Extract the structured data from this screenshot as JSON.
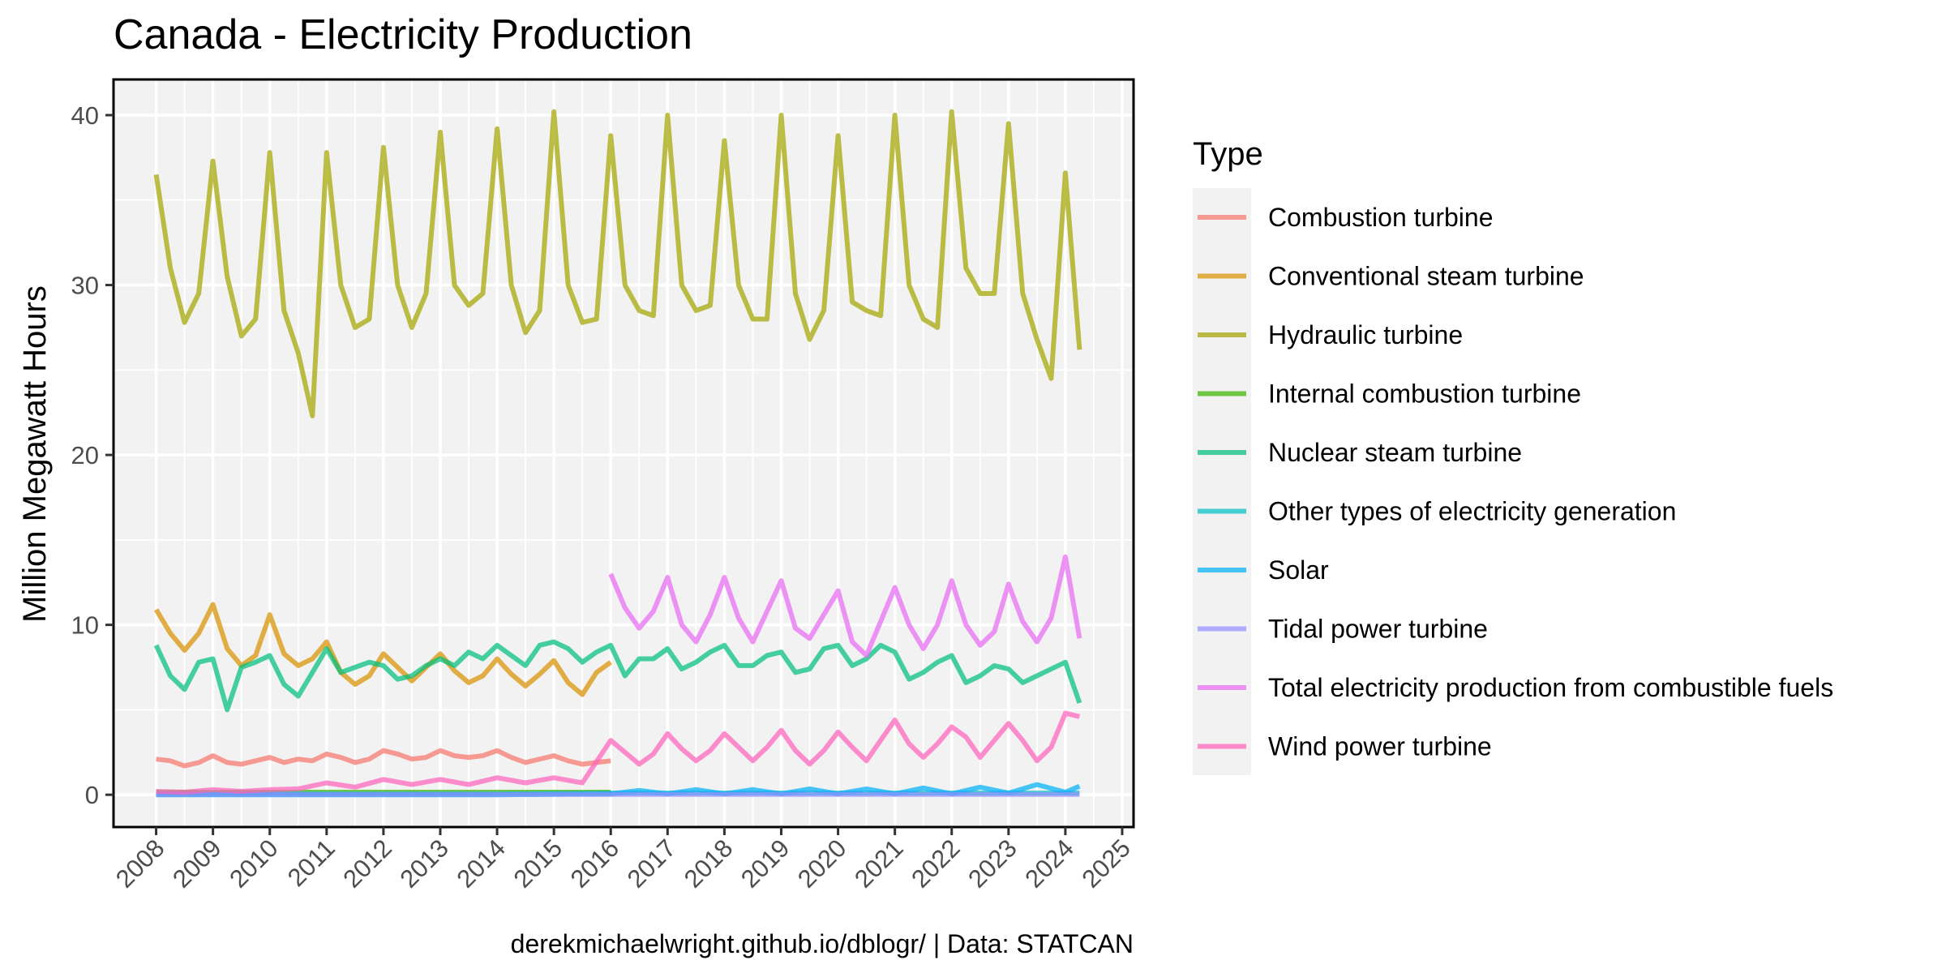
{
  "chart_data": {
    "type": "line",
    "title": "Canada - Electricity Production",
    "ylabel": "Million Megawatt Hours",
    "xlabel": "",
    "caption": "derekmichaelwright.github.io/dblogr/ | Data: STATCAN",
    "legend_title": "Type",
    "legend_position": "right",
    "grid": true,
    "xlim": [
      2007.25,
      2025.2
    ],
    "ylim": [
      -1.9,
      42.1
    ],
    "x_ticks": [
      "2008",
      "2009",
      "2010",
      "2011",
      "2012",
      "2013",
      "2014",
      "2015",
      "2016",
      "2017",
      "2018",
      "2019",
      "2020",
      "2021",
      "2022",
      "2023",
      "2024",
      "2025"
    ],
    "y_ticks": [
      "0",
      "10",
      "20",
      "30",
      "40"
    ],
    "series": [
      {
        "name": "Combustion turbine",
        "color": "#F8766D",
        "x": [
          2008,
          2008.25,
          2008.5,
          2008.75,
          2009,
          2009.25,
          2009.5,
          2009.75,
          2010,
          2010.25,
          2010.5,
          2010.75,
          2011,
          2011.25,
          2011.5,
          2011.75,
          2012,
          2012.25,
          2012.5,
          2012.75,
          2013,
          2013.25,
          2013.5,
          2013.75,
          2014,
          2014.25,
          2014.5,
          2014.75,
          2015,
          2015.25,
          2015.5,
          2015.75,
          2016
        ],
        "y": [
          2.1,
          2.0,
          1.7,
          1.9,
          2.3,
          1.9,
          1.8,
          2.0,
          2.2,
          1.9,
          2.1,
          2.0,
          2.4,
          2.2,
          1.9,
          2.1,
          2.6,
          2.4,
          2.1,
          2.2,
          2.6,
          2.3,
          2.2,
          2.3,
          2.6,
          2.2,
          1.9,
          2.1,
          2.3,
          2.0,
          1.8,
          1.9,
          2.0
        ]
      },
      {
        "name": "Conventional steam turbine",
        "color": "#D89000",
        "x": [
          2008,
          2008.25,
          2008.5,
          2008.75,
          2009,
          2009.25,
          2009.5,
          2009.75,
          2010,
          2010.25,
          2010.5,
          2010.75,
          2011,
          2011.25,
          2011.5,
          2011.75,
          2012,
          2012.25,
          2012.5,
          2012.75,
          2013,
          2013.25,
          2013.5,
          2013.75,
          2014,
          2014.25,
          2014.5,
          2014.75,
          2015,
          2015.25,
          2015.5,
          2015.75,
          2016
        ],
        "y": [
          10.9,
          9.5,
          8.5,
          9.5,
          11.2,
          8.6,
          7.6,
          8.2,
          10.6,
          8.3,
          7.6,
          8.0,
          9.0,
          7.2,
          6.5,
          7.0,
          8.3,
          7.5,
          6.7,
          7.5,
          8.3,
          7.3,
          6.6,
          7.0,
          8.0,
          7.1,
          6.4,
          7.1,
          7.9,
          6.6,
          5.9,
          7.2,
          7.8
        ]
      },
      {
        "name": "Hydraulic turbine",
        "color": "#A3A500",
        "x": [
          2008,
          2008.25,
          2008.5,
          2008.75,
          2009,
          2009.25,
          2009.5,
          2009.75,
          2010,
          2010.25,
          2010.5,
          2010.75,
          2011,
          2011.25,
          2011.5,
          2011.75,
          2012,
          2012.25,
          2012.5,
          2012.75,
          2013,
          2013.25,
          2013.5,
          2013.75,
          2014,
          2014.25,
          2014.5,
          2014.75,
          2015,
          2015.25,
          2015.5,
          2015.75,
          2016,
          2016.25,
          2016.5,
          2016.75,
          2017,
          2017.25,
          2017.5,
          2017.75,
          2018,
          2018.25,
          2018.5,
          2018.75,
          2019,
          2019.25,
          2019.5,
          2019.75,
          2020,
          2020.25,
          2020.5,
          2020.75,
          2021,
          2021.25,
          2021.5,
          2021.75,
          2022,
          2022.25,
          2022.5,
          2022.75,
          2023,
          2023.25,
          2023.5,
          2023.75,
          2024,
          2024.25
        ],
        "y": [
          36.5,
          31.0,
          27.8,
          29.5,
          37.3,
          30.5,
          27.0,
          28.0,
          37.8,
          28.5,
          26.0,
          22.3,
          37.8,
          30.0,
          27.5,
          28.0,
          38.1,
          30.0,
          27.5,
          29.5,
          39.0,
          30.0,
          28.8,
          29.5,
          39.2,
          30.0,
          27.2,
          28.5,
          40.2,
          30.0,
          27.8,
          28.0,
          38.8,
          30.0,
          28.5,
          28.2,
          40.0,
          30.0,
          28.5,
          28.8,
          38.5,
          30.0,
          28.0,
          28.0,
          40.0,
          29.5,
          26.8,
          28.5,
          38.8,
          29.0,
          28.5,
          28.2,
          40.0,
          30.0,
          28.0,
          27.5,
          40.2,
          31.0,
          29.5,
          29.5,
          39.5,
          29.5,
          26.8,
          24.5,
          36.6,
          26.2
        ]
      },
      {
        "name": "Internal combustion turbine",
        "color": "#39B600",
        "x": [
          2008,
          2009,
          2010,
          2011,
          2012,
          2013,
          2014,
          2015,
          2016
        ],
        "y": [
          0.15,
          0.15,
          0.15,
          0.15,
          0.15,
          0.15,
          0.15,
          0.15,
          0.15
        ]
      },
      {
        "name": "Nuclear steam turbine",
        "color": "#00BF7D",
        "x": [
          2008,
          2008.25,
          2008.5,
          2008.75,
          2009,
          2009.25,
          2009.5,
          2009.75,
          2010,
          2010.25,
          2010.5,
          2010.75,
          2011,
          2011.25,
          2011.5,
          2011.75,
          2012,
          2012.25,
          2012.5,
          2012.75,
          2013,
          2013.25,
          2013.5,
          2013.75,
          2014,
          2014.25,
          2014.5,
          2014.75,
          2015,
          2015.25,
          2015.5,
          2015.75,
          2016,
          2016.25,
          2016.5,
          2016.75,
          2017,
          2017.25,
          2017.5,
          2017.75,
          2018,
          2018.25,
          2018.5,
          2018.75,
          2019,
          2019.25,
          2019.5,
          2019.75,
          2020,
          2020.25,
          2020.5,
          2020.75,
          2021,
          2021.25,
          2021.5,
          2021.75,
          2022,
          2022.25,
          2022.5,
          2022.75,
          2023,
          2023.25,
          2023.5,
          2023.75,
          2024,
          2024.25
        ],
        "y": [
          8.8,
          7.0,
          6.2,
          7.8,
          8.0,
          5.0,
          7.5,
          7.8,
          8.2,
          6.5,
          5.8,
          7.2,
          8.6,
          7.2,
          7.5,
          7.8,
          7.6,
          6.8,
          7.0,
          7.6,
          8.0,
          7.6,
          8.4,
          8.0,
          8.8,
          8.2,
          7.6,
          8.8,
          9.0,
          8.6,
          7.8,
          8.4,
          8.8,
          7.0,
          8.0,
          8.0,
          8.6,
          7.4,
          7.8,
          8.4,
          8.8,
          7.6,
          7.6,
          8.2,
          8.4,
          7.2,
          7.4,
          8.6,
          8.8,
          7.6,
          8.0,
          8.8,
          8.4,
          6.8,
          7.2,
          7.8,
          8.2,
          6.6,
          7.0,
          7.6,
          7.4,
          6.6,
          7.0,
          7.4,
          7.8,
          5.4
        ]
      },
      {
        "name": "Other types of electricity generation",
        "color": "#00BFC4",
        "x": [
          2008,
          2010,
          2012,
          2014,
          2016,
          2017,
          2018,
          2019,
          2020,
          2021,
          2022,
          2023,
          2024.25
        ],
        "y": [
          0.05,
          0.05,
          0.05,
          0.05,
          0.1,
          0.1,
          0.1,
          0.1,
          0.1,
          0.1,
          0.1,
          0.1,
          0.1
        ]
      },
      {
        "name": "Solar",
        "color": "#00B0F6",
        "x": [
          2008,
          2010,
          2012,
          2014,
          2016,
          2016.5,
          2017,
          2017.5,
          2018,
          2018.5,
          2019,
          2019.5,
          2020,
          2020.5,
          2021,
          2021.5,
          2022,
          2022.5,
          2023,
          2023.5,
          2024,
          2024.25
        ],
        "y": [
          0.0,
          0.0,
          0.0,
          0.0,
          0.05,
          0.25,
          0.05,
          0.3,
          0.05,
          0.3,
          0.05,
          0.35,
          0.05,
          0.35,
          0.05,
          0.4,
          0.05,
          0.45,
          0.1,
          0.6,
          0.15,
          0.5
        ]
      },
      {
        "name": "Tidal power turbine",
        "color": "#9590FF",
        "x": [
          2008,
          2012,
          2016,
          2020,
          2024.25
        ],
        "y": [
          0.02,
          0.02,
          0.02,
          0.02,
          0.02
        ]
      },
      {
        "name": "Total electricity production from combustible fuels",
        "color": "#E76BF3",
        "x": [
          2016,
          2016.25,
          2016.5,
          2016.75,
          2017,
          2017.25,
          2017.5,
          2017.75,
          2018,
          2018.25,
          2018.5,
          2018.75,
          2019,
          2019.25,
          2019.5,
          2019.75,
          2020,
          2020.25,
          2020.5,
          2020.75,
          2021,
          2021.25,
          2021.5,
          2021.75,
          2022,
          2022.25,
          2022.5,
          2022.75,
          2023,
          2023.25,
          2023.5,
          2023.75,
          2024,
          2024.25
        ],
        "y": [
          13.0,
          11.0,
          9.8,
          10.8,
          12.8,
          10.0,
          9.0,
          10.6,
          12.8,
          10.4,
          9.0,
          10.8,
          12.6,
          9.8,
          9.2,
          10.6,
          12.0,
          9.0,
          8.2,
          10.2,
          12.2,
          10.0,
          8.6,
          10.0,
          12.6,
          10.0,
          8.8,
          9.6,
          12.4,
          10.2,
          9.0,
          10.4,
          14.0,
          9.2
        ]
      },
      {
        "name": "Wind power turbine",
        "color": "#FF62BC",
        "x": [
          2008,
          2008.5,
          2009,
          2009.5,
          2010,
          2010.5,
          2011,
          2011.5,
          2012,
          2012.5,
          2013,
          2013.5,
          2014,
          2014.5,
          2015,
          2015.5,
          2016,
          2016.25,
          2016.5,
          2016.75,
          2017,
          2017.25,
          2017.5,
          2017.75,
          2018,
          2018.25,
          2018.5,
          2018.75,
          2019,
          2019.25,
          2019.5,
          2019.75,
          2020,
          2020.25,
          2020.5,
          2020.75,
          2021,
          2021.25,
          2021.5,
          2021.75,
          2022,
          2022.25,
          2022.5,
          2022.75,
          2023,
          2023.25,
          2023.5,
          2023.75,
          2024,
          2024.25
        ],
        "y": [
          0.2,
          0.15,
          0.3,
          0.2,
          0.3,
          0.35,
          0.7,
          0.45,
          0.9,
          0.6,
          0.9,
          0.6,
          1.0,
          0.7,
          1.0,
          0.7,
          3.2,
          2.5,
          1.8,
          2.4,
          3.6,
          2.7,
          2.0,
          2.6,
          3.6,
          2.8,
          2.0,
          2.8,
          3.8,
          2.6,
          1.8,
          2.6,
          3.7,
          2.8,
          2.0,
          3.2,
          4.4,
          3.0,
          2.2,
          3.0,
          4.0,
          3.4,
          2.2,
          3.2,
          4.2,
          3.2,
          2.0,
          2.8,
          4.8,
          4.6
        ]
      }
    ]
  }
}
